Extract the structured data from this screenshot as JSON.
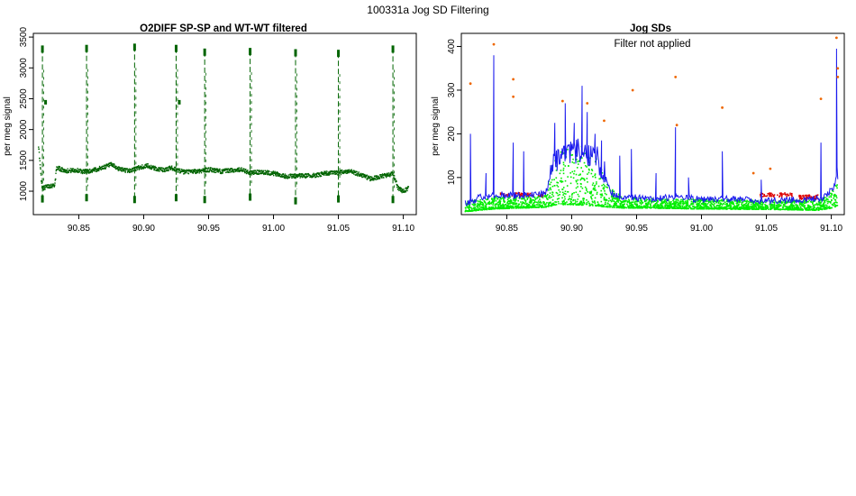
{
  "page": {
    "title": "100331a   Jog SD Filtering"
  },
  "colors": {
    "dark_green": "#006400",
    "bright_green": "#00ee00",
    "blue": "#1a1aee",
    "red": "#dd0000",
    "orange": "#ee6600",
    "axis": "#000000"
  },
  "chart_data": [
    {
      "type": "scatter",
      "title": "O2DIFF SP-SP and WT-WT filtered",
      "xlabel": "",
      "ylabel": "per meg signal",
      "xlim": [
        90.815,
        91.11
      ],
      "ylim": [
        620,
        3560
      ],
      "xticks": [
        90.85,
        90.9,
        90.95,
        91.0,
        91.05,
        91.1
      ],
      "xtick_labels": [
        "90.85",
        "90.90",
        "90.95",
        "91.00",
        "91.05",
        "91.10"
      ],
      "yticks": [
        1000,
        1500,
        2000,
        2500,
        3000,
        3500
      ],
      "ytick_labels": [
        "1000",
        "1500",
        "2000",
        "2500",
        "3000",
        "3500"
      ],
      "grid": false,
      "series": [
        {
          "color": "dark_green",
          "baseline": [
            [
              90.819,
              1750
            ],
            [
              90.8215,
              1100
            ],
            [
              90.823,
              1050
            ],
            [
              90.826,
              1080
            ],
            [
              90.8315,
              1100
            ],
            [
              90.833,
              1380
            ],
            [
              90.84,
              1330
            ],
            [
              90.848,
              1340
            ],
            [
              90.853,
              1320
            ],
            [
              90.86,
              1330
            ],
            [
              90.868,
              1380
            ],
            [
              90.875,
              1430
            ],
            [
              90.881,
              1360
            ],
            [
              90.889,
              1330
            ],
            [
              90.896,
              1380
            ],
            [
              90.903,
              1410
            ],
            [
              90.91,
              1360
            ],
            [
              90.916,
              1340
            ],
            [
              90.921,
              1380
            ],
            [
              90.931,
              1310
            ],
            [
              90.94,
              1320
            ],
            [
              90.951,
              1350
            ],
            [
              90.96,
              1320
            ],
            [
              90.968,
              1340
            ],
            [
              90.975,
              1350
            ],
            [
              90.981,
              1300
            ],
            [
              90.99,
              1310
            ],
            [
              91.0,
              1290
            ],
            [
              91.01,
              1240
            ],
            [
              91.02,
              1250
            ],
            [
              91.03,
              1250
            ],
            [
              91.04,
              1290
            ],
            [
              91.05,
              1300
            ],
            [
              91.06,
              1320
            ],
            [
              91.068,
              1260
            ],
            [
              91.075,
              1200
            ],
            [
              91.085,
              1250
            ],
            [
              91.092,
              1280
            ],
            [
              91.096,
              1050
            ],
            [
              91.1,
              1000
            ],
            [
              91.104,
              1050
            ]
          ],
          "spikes": [
            {
              "x": 90.822,
              "high": 3320,
              "low": 860,
              "mid": 2450
            },
            {
              "x": 90.856,
              "high": 3330,
              "low": 880
            },
            {
              "x": 90.893,
              "high": 3350,
              "low": 850
            },
            {
              "x": 90.925,
              "high": 3330,
              "low": 880,
              "mid": 2450
            },
            {
              "x": 90.947,
              "high": 3270,
              "low": 850
            },
            {
              "x": 90.982,
              "high": 3280,
              "low": 890
            },
            {
              "x": 91.017,
              "high": 3260,
              "low": 830
            },
            {
              "x": 91.05,
              "high": 3250,
              "low": 860
            },
            {
              "x": 91.092,
              "high": 3320,
              "low": 850
            }
          ]
        }
      ]
    },
    {
      "type": "line",
      "title": "Jog SDs",
      "annotation": "Filter not applied",
      "xlabel": "",
      "ylabel": "per meg signal",
      "xlim": [
        90.815,
        91.11
      ],
      "ylim": [
        15,
        430
      ],
      "xticks": [
        90.85,
        90.9,
        90.95,
        91.0,
        91.05,
        91.1
      ],
      "xtick_labels": [
        "90.85",
        "90.90",
        "90.95",
        "91.00",
        "91.05",
        "91.10"
      ],
      "yticks": [
        100,
        200,
        300,
        400
      ],
      "ytick_labels": [
        "100",
        "200",
        "300",
        "400"
      ],
      "grid": false,
      "series": [
        {
          "color": "bright_green",
          "envelope": [
            [
              90.818,
              22,
              45
            ],
            [
              90.84,
              28,
              55
            ],
            [
              90.86,
              30,
              55
            ],
            [
              90.88,
              32,
              60
            ],
            [
              90.885,
              35,
              130
            ],
            [
              90.892,
              38,
              170
            ],
            [
              90.9,
              38,
              165
            ],
            [
              90.91,
              36,
              175
            ],
            [
              90.92,
              35,
              140
            ],
            [
              90.928,
              32,
              80
            ],
            [
              90.94,
              30,
              55
            ],
            [
              90.96,
              30,
              52
            ],
            [
              91.0,
              28,
              50
            ],
            [
              91.05,
              27,
              48
            ],
            [
              91.09,
              25,
              48
            ],
            [
              91.1,
              30,
              65
            ],
            [
              91.105,
              35,
              100
            ]
          ]
        },
        {
          "color": "blue",
          "baseline": [
            [
              90.818,
              40
            ],
            [
              90.83,
              55
            ],
            [
              90.845,
              60
            ],
            [
              90.86,
              58
            ],
            [
              90.88,
              62
            ],
            [
              90.886,
              130
            ],
            [
              90.895,
              150
            ],
            [
              90.905,
              160
            ],
            [
              90.915,
              155
            ],
            [
              90.92,
              140
            ],
            [
              90.925,
              110
            ],
            [
              90.93,
              65
            ],
            [
              90.94,
              55
            ],
            [
              90.96,
              52
            ],
            [
              90.98,
              55
            ],
            [
              91.0,
              50
            ],
            [
              91.02,
              50
            ],
            [
              91.05,
              48
            ],
            [
              91.08,
              48
            ],
            [
              91.095,
              55
            ],
            [
              91.102,
              80
            ],
            [
              91.105,
              110
            ]
          ],
          "spikes": [
            {
              "x": 90.822,
              "y": 200
            },
            {
              "x": 90.834,
              "y": 110
            },
            {
              "x": 90.84,
              "y": 380
            },
            {
              "x": 90.855,
              "y": 180
            },
            {
              "x": 90.863,
              "y": 160
            },
            {
              "x": 90.887,
              "y": 225
            },
            {
              "x": 90.895,
              "y": 270
            },
            {
              "x": 90.902,
              "y": 225
            },
            {
              "x": 90.908,
              "y": 310
            },
            {
              "x": 90.912,
              "y": 250
            },
            {
              "x": 90.918,
              "y": 200
            },
            {
              "x": 90.923,
              "y": 185
            },
            {
              "x": 90.937,
              "y": 150
            },
            {
              "x": 90.946,
              "y": 165
            },
            {
              "x": 90.965,
              "y": 110
            },
            {
              "x": 90.98,
              "y": 215
            },
            {
              "x": 90.99,
              "y": 100
            },
            {
              "x": 91.016,
              "y": 160
            },
            {
              "x": 91.046,
              "y": 95
            },
            {
              "x": 91.092,
              "y": 180
            },
            {
              "x": 91.104,
              "y": 395
            }
          ]
        },
        {
          "color": "red",
          "band": [
            [
              90.845,
              90.88,
              60
            ],
            [
              91.045,
              91.07,
              60
            ],
            [
              91.075,
              91.09,
              55
            ]
          ]
        },
        {
          "color": "orange",
          "points": [
            [
              90.822,
              315
            ],
            [
              90.84,
              405
            ],
            [
              90.855,
              325
            ],
            [
              90.855,
              285
            ],
            [
              90.893,
              275
            ],
            [
              90.912,
              270
            ],
            [
              90.925,
              230
            ],
            [
              90.947,
              300
            ],
            [
              90.98,
              330
            ],
            [
              90.981,
              220
            ],
            [
              91.016,
              260
            ],
            [
              91.04,
              110
            ],
            [
              91.053,
              120
            ],
            [
              91.092,
              280
            ],
            [
              91.104,
              420
            ],
            [
              91.105,
              350
            ],
            [
              91.105,
              330
            ]
          ]
        }
      ]
    }
  ]
}
